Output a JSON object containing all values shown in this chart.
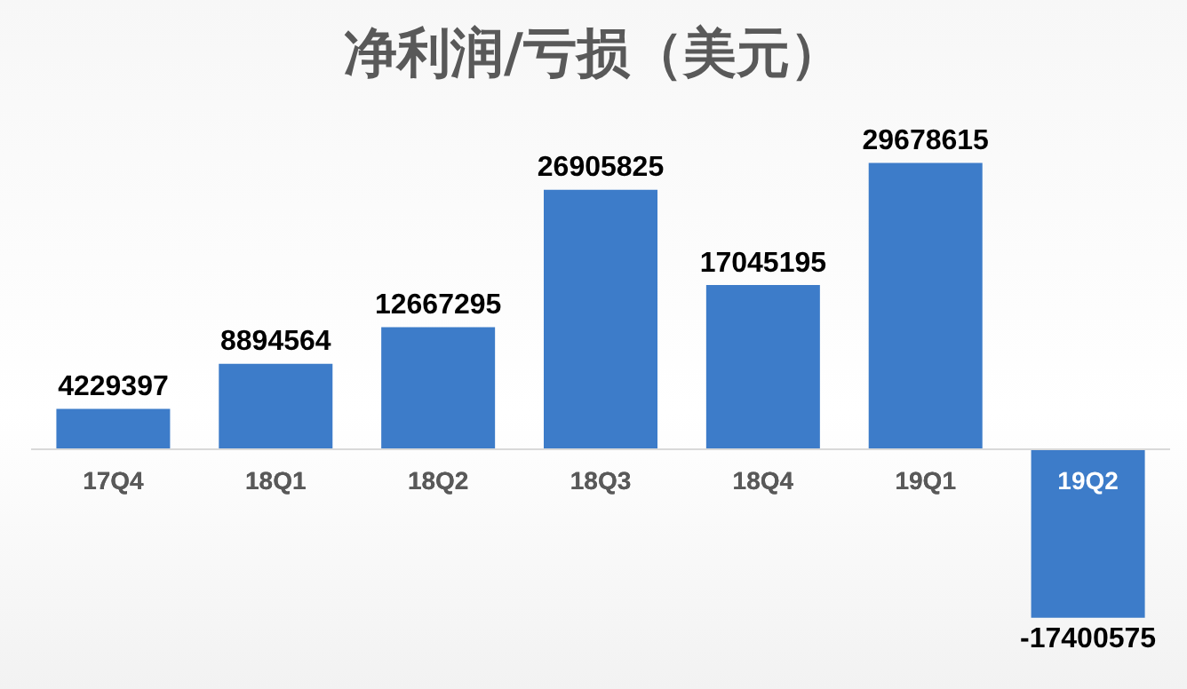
{
  "chart_data": {
    "type": "bar",
    "title": "净利润/亏损（美元）",
    "categories": [
      "17Q4",
      "18Q1",
      "18Q2",
      "18Q3",
      "18Q4",
      "19Q1",
      "19Q2"
    ],
    "values": [
      4229397,
      8894564,
      12667295,
      26905825,
      17045195,
      29678615,
      -17400575
    ],
    "color": "#3d7cc9",
    "data_labels": true,
    "grid": false,
    "legend": false
  }
}
